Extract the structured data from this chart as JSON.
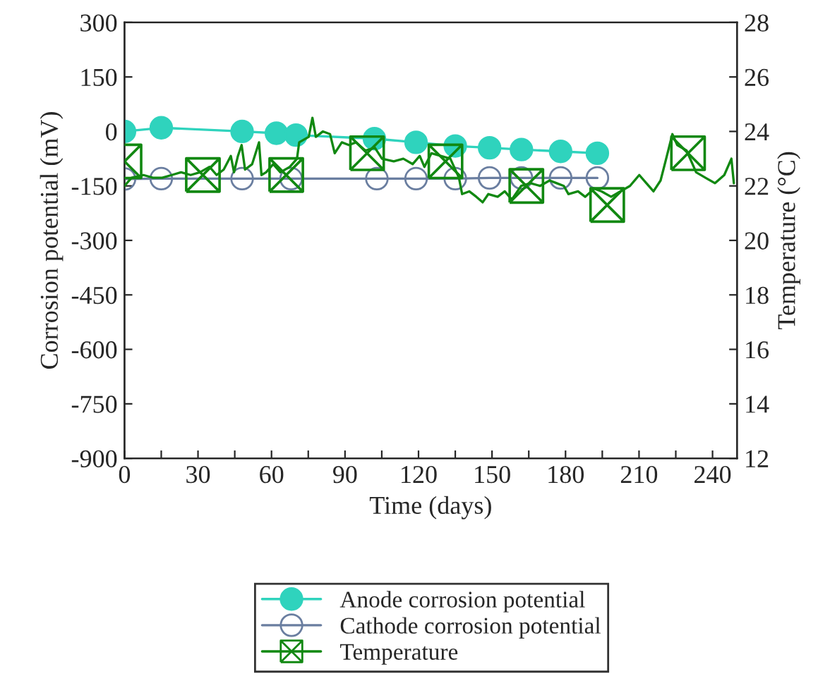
{
  "chart_data": {
    "type": "line",
    "xlabel": "Time (days)",
    "ylabel": "Corrosion potential (mV)",
    "y2label": "Temperature (°C)",
    "xlim": [
      0,
      250
    ],
    "xticks": [
      0,
      {
        "value": 15,
        "label": null
      },
      30,
      {
        "value": 45,
        "label": null
      },
      60,
      {
        "value": 75,
        "label": null
      },
      90,
      {
        "value": 105,
        "label": null
      },
      120,
      {
        "value": 135,
        "label": null
      },
      150,
      {
        "value": 165,
        "label": null
      },
      180,
      {
        "value": 195,
        "label": null
      },
      210,
      {
        "value": 225,
        "label": null
      },
      240
    ],
    "ylim": [
      -900,
      300
    ],
    "yticks": [
      -900,
      -750,
      -600,
      -450,
      -300,
      -150,
      0,
      150,
      300
    ],
    "y2lim": [
      12,
      28
    ],
    "y2ticks": [
      12,
      14,
      16,
      18,
      20,
      22,
      24,
      26,
      28
    ],
    "legend": "bottom",
    "grid": false,
    "series": [
      {
        "name": "Anode corrosion potential",
        "color": "#2fd3bd",
        "marker": "circle",
        "x": [
          0,
          15,
          48,
          62,
          70,
          102,
          119,
          135,
          149,
          162,
          178,
          193
        ],
        "values": [
          0,
          10,
          0,
          -5,
          -10,
          -20,
          -30,
          -40,
          -45,
          -50,
          -55,
          -60
        ]
      },
      {
        "name": "Cathode corrosion potential",
        "color": "#6a7ea0",
        "marker": "circle",
        "x": [
          0,
          15,
          48,
          68,
          103,
          119,
          135,
          149,
          162,
          178,
          193
        ],
        "values": [
          -131,
          -130,
          -130,
          -130,
          -130,
          -130,
          -130,
          -128,
          -128,
          -128,
          -128
        ]
      },
      {
        "name": "Temperature",
        "color": "#118811",
        "marker": "none",
        "axis": "y2",
        "x": [
          0,
          2.9,
          7.7,
          11.6,
          15.4,
          19.3,
          23.1,
          27,
          30.8,
          34.7,
          37.6,
          40.5,
          43.4,
          44.7,
          46.3,
          47.8,
          49.2,
          52.1,
          54.9,
          55.9,
          57.8,
          60.7,
          63.6,
          67.5,
          70.4,
          71.3,
          75.2,
          76.7,
          78.1,
          81,
          83.9,
          85.8,
          88.7,
          91.6,
          94.5,
          98.3,
          102.2,
          105.1,
          109.9,
          113.8,
          117.6,
          120.5,
          122.4,
          125.3,
          133,
          136.5,
          137.8,
          140.7,
          143.6,
          146.2,
          148.5,
          152.3,
          155.2,
          158.1,
          161.9,
          165.8,
          169.6,
          173.5,
          176.4,
          179.3,
          181.2,
          185.1,
          188,
          191.8,
          194.7,
          198.6,
          202.4,
          206.3,
          210.1,
          213,
          215.9,
          218.8,
          220.8,
          223.6,
          225.6,
          229.4,
          233.3,
          237.1,
          241,
          244.8,
          247.7,
          248.7
        ],
        "values": [
          22.0,
          22.3,
          22.4,
          22.3,
          22.3,
          22.4,
          22.5,
          22.4,
          22.5,
          22.7,
          22.4,
          22.6,
          23.1,
          22.5,
          23.1,
          23.5,
          22.6,
          22.8,
          23.6,
          22.4,
          22.5,
          22.8,
          22.5,
          22.7,
          23.0,
          23.6,
          23.8,
          24.5,
          23.8,
          24.0,
          23.9,
          23.2,
          23.6,
          23.5,
          23.6,
          23.3,
          23.4,
          23.0,
          22.9,
          23.0,
          22.8,
          23.1,
          22.7,
          23.2,
          23.0,
          22.3,
          21.7,
          21.8,
          21.6,
          21.4,
          21.7,
          21.6,
          21.8,
          21.5,
          22.0,
          22.1,
          22.0,
          22.2,
          22.1,
          22.0,
          21.7,
          21.8,
          21.6,
          21.9,
          21.8,
          21.6,
          21.8,
          22.0,
          22.4,
          22.1,
          21.8,
          22.2,
          22.9,
          23.9,
          23.5,
          23.3,
          22.5,
          22.3,
          22.1,
          22.4,
          23.0,
          22.1
        ]
      },
      {
        "type": "scatter",
        "color": "#118811",
        "marker": "square",
        "axis": "y2",
        "x": [
          0,
          32,
          66,
          99,
          131,
          164,
          197,
          230
        ],
        "values": [
          22.9,
          22.4,
          22.4,
          23.2,
          22.9,
          22.0,
          21.3,
          23.2
        ]
      }
    ]
  }
}
